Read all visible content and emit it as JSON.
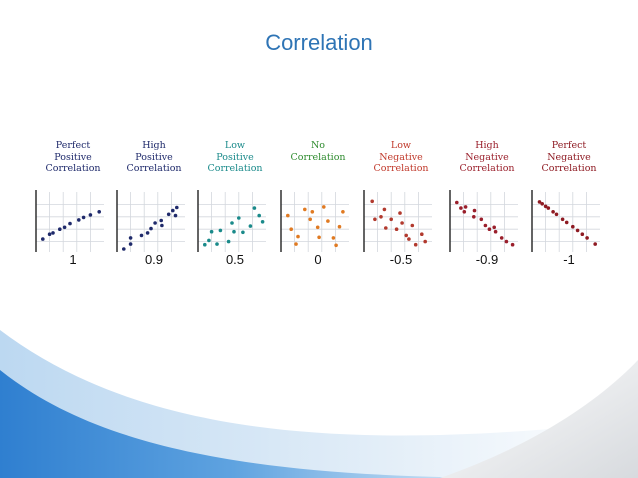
{
  "title": "Correlation",
  "colors": {
    "title": "#2e74b5",
    "wave_dark": "#2f7fd0",
    "wave_light": "#cfe3f5"
  },
  "chart_data": [
    {
      "type": "scatter",
      "title": [
        "Perfect",
        "Positive",
        "Correlation"
      ],
      "r_label": "1",
      "color": "#1f2a6b",
      "title_color": "#1f2a6b",
      "xlim": [
        0,
        10
      ],
      "ylim": [
        0,
        10
      ],
      "points": [
        [
          1,
          2.4
        ],
        [
          2,
          3.2
        ],
        [
          2.5,
          3.4
        ],
        [
          3.5,
          4
        ],
        [
          4.2,
          4.3
        ],
        [
          5,
          4.9
        ],
        [
          6.3,
          5.5
        ],
        [
          7,
          5.9
        ],
        [
          8,
          6.3
        ],
        [
          9.3,
          6.8
        ]
      ]
    },
    {
      "type": "scatter",
      "title": [
        "High",
        "Positive",
        "Correlation"
      ],
      "r_label": "0.9",
      "color": "#1f2a6b",
      "title_color": "#1f2a6b",
      "xlim": [
        0,
        10
      ],
      "ylim": [
        0,
        10
      ],
      "points": [
        [
          1,
          0.8
        ],
        [
          2,
          1.6
        ],
        [
          2,
          2.6
        ],
        [
          3.6,
          3
        ],
        [
          4.5,
          3.4
        ],
        [
          5,
          4.1
        ],
        [
          5.6,
          5
        ],
        [
          6.5,
          5.4
        ],
        [
          6.6,
          4.6
        ],
        [
          7.6,
          6.4
        ],
        [
          8.2,
          7
        ],
        [
          8.6,
          6.2
        ],
        [
          8.8,
          7.5
        ]
      ]
    },
    {
      "type": "scatter",
      "title": [
        "Low",
        "Positive",
        "Correlation"
      ],
      "r_label": "0.5",
      "color": "#1a8a8a",
      "title_color": "#1a8a8a",
      "xlim": [
        0,
        10
      ],
      "ylim": [
        0,
        10
      ],
      "points": [
        [
          1,
          1.5
        ],
        [
          1.6,
          2.2
        ],
        [
          2,
          3.6
        ],
        [
          2.8,
          1.6
        ],
        [
          3.3,
          3.8
        ],
        [
          4.5,
          2
        ],
        [
          5,
          5
        ],
        [
          5.3,
          3.6
        ],
        [
          6,
          5.8
        ],
        [
          6.6,
          3.5
        ],
        [
          7.7,
          4.5
        ],
        [
          8.3,
          7.4
        ],
        [
          9,
          6.2
        ],
        [
          9.5,
          5.2
        ]
      ]
    },
    {
      "type": "scatter",
      "title": [
        "No",
        "Correlation"
      ],
      "r_label": "0",
      "color": "#e07a22",
      "title_color": "#2e8b2e",
      "xlim": [
        0,
        10
      ],
      "ylim": [
        0,
        10
      ],
      "points": [
        [
          1,
          6.2
        ],
        [
          1.5,
          4
        ],
        [
          2.5,
          2.8
        ],
        [
          2.2,
          1.6
        ],
        [
          3.5,
          7.2
        ],
        [
          4.3,
          5.6
        ],
        [
          4.6,
          6.8
        ],
        [
          5.4,
          4.3
        ],
        [
          5.6,
          2.7
        ],
        [
          6.3,
          7.6
        ],
        [
          6.9,
          5.3
        ],
        [
          7.7,
          2.6
        ],
        [
          8.1,
          1.4
        ],
        [
          8.6,
          4.4
        ],
        [
          9.1,
          6.8
        ]
      ]
    },
    {
      "type": "scatter",
      "title": [
        "Low",
        "Negative",
        "Correlation"
      ],
      "r_label": "-0.5",
      "color": "#b23a2e",
      "title_color": "#c0392b",
      "xlim": [
        0,
        10
      ],
      "ylim": [
        0,
        10
      ],
      "points": [
        [
          1.2,
          8.5
        ],
        [
          1.6,
          5.6
        ],
        [
          2.5,
          6
        ],
        [
          3,
          7.2
        ],
        [
          3.2,
          4.2
        ],
        [
          4,
          5.6
        ],
        [
          4.8,
          4
        ],
        [
          5.3,
          6.6
        ],
        [
          5.6,
          5
        ],
        [
          6.2,
          3
        ],
        [
          6.6,
          2.4
        ],
        [
          7.1,
          4.6
        ],
        [
          7.6,
          1.5
        ],
        [
          8.5,
          3.2
        ],
        [
          9,
          2
        ]
      ]
    },
    {
      "type": "scatter",
      "title": [
        "High",
        "Negative",
        "Correlation"
      ],
      "r_label": "-0.9",
      "color": "#9a1f2b",
      "title_color": "#9a1f2b",
      "xlim": [
        0,
        10
      ],
      "ylim": [
        0,
        10
      ],
      "points": [
        [
          1,
          8.3
        ],
        [
          1.6,
          7.4
        ],
        [
          2.1,
          6.8
        ],
        [
          2.3,
          7.6
        ],
        [
          3.6,
          7
        ],
        [
          3.5,
          6
        ],
        [
          4.6,
          5.6
        ],
        [
          5.2,
          4.6
        ],
        [
          5.8,
          4
        ],
        [
          6.5,
          4.3
        ],
        [
          6.7,
          3.6
        ],
        [
          7.6,
          2.6
        ],
        [
          8.3,
          2
        ],
        [
          9.2,
          1.5
        ]
      ]
    },
    {
      "type": "scatter",
      "title": [
        "Perfect",
        "Negative",
        "Correlation"
      ],
      "r_label": "-1",
      "color": "#8e1a22",
      "title_color": "#8e1a22",
      "xlim": [
        0,
        10
      ],
      "ylim": [
        0,
        10
      ],
      "points": [
        [
          1.1,
          8.4
        ],
        [
          1.5,
          8.1
        ],
        [
          2,
          7.7
        ],
        [
          2.4,
          7.4
        ],
        [
          3.1,
          6.8
        ],
        [
          3.6,
          6.4
        ],
        [
          4.5,
          5.6
        ],
        [
          5.1,
          5.1
        ],
        [
          6,
          4.4
        ],
        [
          6.7,
          3.8
        ],
        [
          7.4,
          3.2
        ],
        [
          8.1,
          2.6
        ],
        [
          9.3,
          1.6
        ]
      ]
    }
  ]
}
